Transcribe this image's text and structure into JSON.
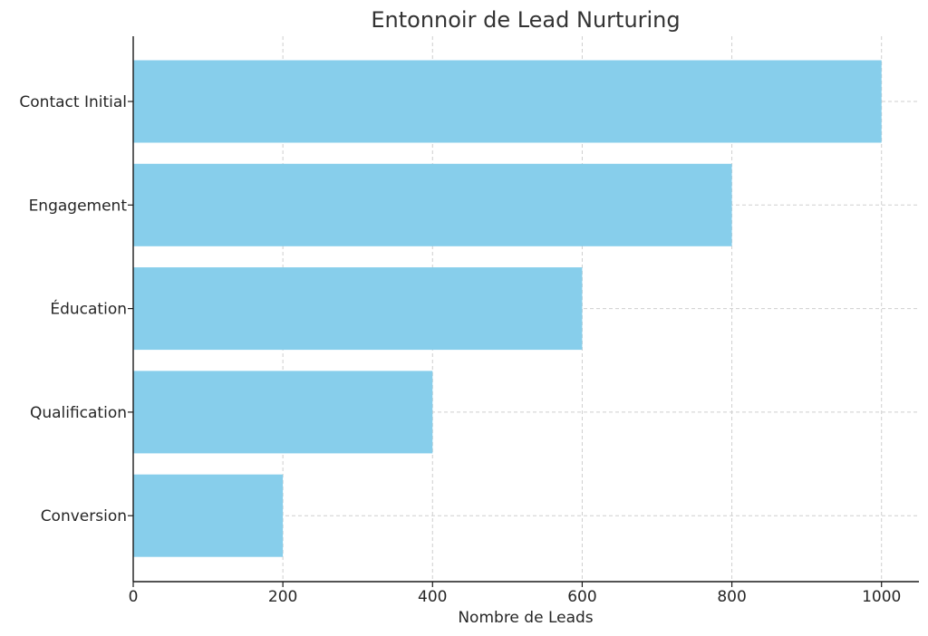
{
  "chart_data": {
    "type": "bar",
    "orientation": "horizontal",
    "title": "Entonnoir de Lead Nurturing",
    "xlabel": "Nombre de Leads",
    "ylabel": "",
    "categories": [
      "Contact Initial",
      "Engagement",
      "Éducation",
      "Qualification",
      "Conversion"
    ],
    "values": [
      1000,
      800,
      600,
      400,
      200
    ],
    "xlim": [
      0,
      1050
    ],
    "xticks": [
      0,
      200,
      400,
      600,
      800,
      1000
    ],
    "bar_color": "#87ceeb",
    "grid": true,
    "legend": "none"
  }
}
